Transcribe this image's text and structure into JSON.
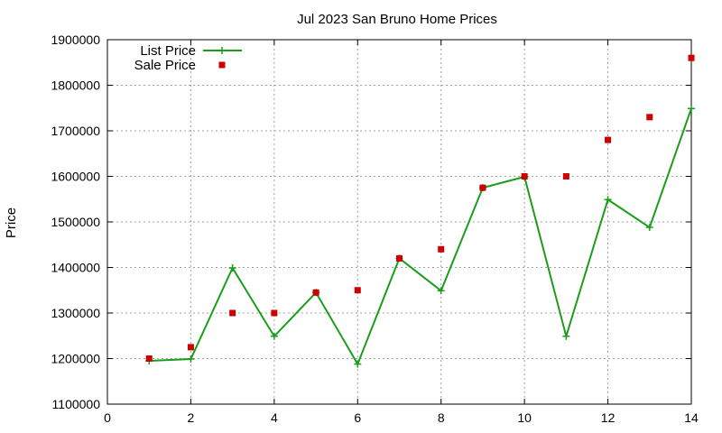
{
  "chart_data": {
    "type": "line",
    "title": "Jul 2023 San Bruno Home Prices",
    "xlabel": "",
    "ylabel": "Price",
    "xlim": [
      0,
      14
    ],
    "ylim": [
      1100000,
      1900000
    ],
    "x_ticks": [
      "0",
      "2",
      "4",
      "6",
      "8",
      "10",
      "12",
      "14"
    ],
    "y_ticks": [
      "1100000",
      "1200000",
      "1300000",
      "1400000",
      "1500000",
      "1600000",
      "1700000",
      "1800000",
      "1900000"
    ],
    "grid": true,
    "legend_position": "top-left",
    "series": [
      {
        "name": "List Price",
        "style": "line-points",
        "marker": "plus",
        "color": "#1a9e1a",
        "x": [
          1,
          2,
          3,
          4,
          5,
          6,
          7,
          8,
          9,
          10,
          11,
          12,
          13,
          14
        ],
        "y": [
          1195000,
          1199000,
          1399000,
          1249000,
          1345000,
          1188000,
          1420000,
          1349000,
          1575000,
          1599000,
          1249000,
          1549000,
          1488000,
          1749000
        ]
      },
      {
        "name": "Sale Price",
        "style": "points",
        "marker": "square",
        "color": "#cc0000",
        "x": [
          1,
          2,
          3,
          4,
          5,
          6,
          7,
          8,
          9,
          10,
          11,
          12,
          13,
          14
        ],
        "y": [
          1200000,
          1225000,
          1300000,
          1300000,
          1345000,
          1350000,
          1420000,
          1440000,
          1575000,
          1600000,
          1600000,
          1680000,
          1730000,
          1860000
        ]
      }
    ]
  }
}
